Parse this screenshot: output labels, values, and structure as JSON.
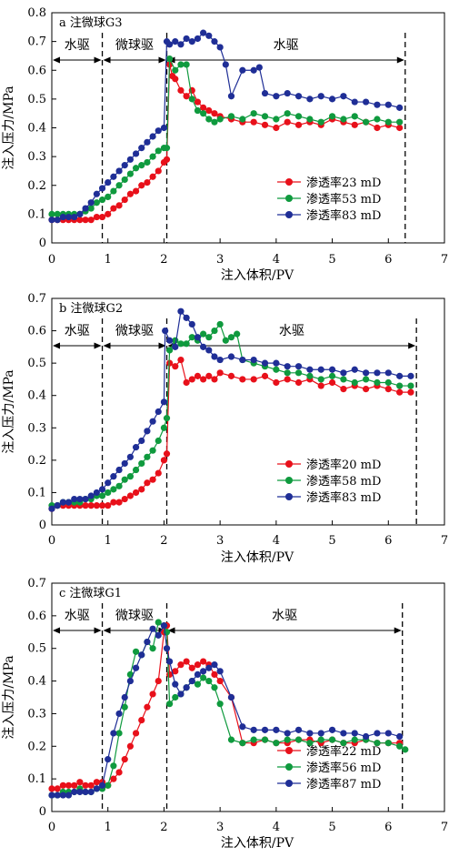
{
  "colors": {
    "red": "#e8101a",
    "green": "#0f9a3e",
    "blue": "#1f2e96"
  },
  "chart_data": [
    {
      "type": "line",
      "title": "a 注微球G3",
      "xlabel": "注入体积/PV",
      "ylabel": "注入压力/MPa",
      "xlim": [
        0,
        7
      ],
      "ylim": [
        0,
        0.8
      ],
      "xticks": [
        "0",
        "1",
        "2",
        "3",
        "4",
        "5",
        "6",
        "7"
      ],
      "yticks": [
        "0",
        "0.1",
        "0.2",
        "0.3",
        "0.4",
        "0.5",
        "0.6",
        "0.7",
        "0.8"
      ],
      "legend_position": "lower-right",
      "stage_lines": [
        0.9,
        2.05,
        6.3
      ],
      "stages": [
        {
          "label": "水驱",
          "from": 0,
          "to": 0.9
        },
        {
          "label": "微球驱",
          "from": 0.9,
          "to": 2.05
        },
        {
          "label": "水驱",
          "from": 2.05,
          "to": 6.3
        }
      ],
      "series": [
        {
          "name": "渗透率23 mD",
          "color": "red",
          "x": [
            0,
            0.1,
            0.2,
            0.3,
            0.4,
            0.5,
            0.6,
            0.7,
            0.8,
            0.9,
            1.0,
            1.1,
            1.2,
            1.3,
            1.4,
            1.5,
            1.6,
            1.7,
            1.8,
            1.9,
            2.0,
            2.05,
            2.1,
            2.15,
            2.2,
            2.3,
            2.4,
            2.5,
            2.6,
            2.7,
            2.8,
            2.9,
            3.0,
            3.2,
            3.4,
            3.6,
            3.8,
            4.0,
            4.2,
            4.4,
            4.6,
            4.8,
            5.0,
            5.2,
            5.4,
            5.6,
            5.8,
            6.0,
            6.2
          ],
          "y": [
            0.08,
            0.08,
            0.08,
            0.08,
            0.08,
            0.08,
            0.08,
            0.08,
            0.09,
            0.09,
            0.1,
            0.12,
            0.13,
            0.15,
            0.17,
            0.18,
            0.2,
            0.21,
            0.23,
            0.25,
            0.28,
            0.29,
            0.62,
            0.58,
            0.57,
            0.53,
            0.51,
            0.53,
            0.49,
            0.47,
            0.46,
            0.45,
            0.44,
            0.43,
            0.42,
            0.42,
            0.41,
            0.4,
            0.42,
            0.41,
            0.42,
            0.41,
            0.43,
            0.42,
            0.41,
            0.42,
            0.4,
            0.41,
            0.4
          ]
        },
        {
          "name": "渗透率53 mD",
          "color": "green",
          "x": [
            0,
            0.1,
            0.2,
            0.3,
            0.4,
            0.5,
            0.6,
            0.7,
            0.8,
            0.9,
            1.0,
            1.1,
            1.2,
            1.3,
            1.4,
            1.5,
            1.6,
            1.7,
            1.8,
            1.9,
            2.0,
            2.05,
            2.1,
            2.2,
            2.3,
            2.4,
            2.5,
            2.6,
            2.7,
            2.8,
            2.9,
            3.0,
            3.2,
            3.4,
            3.6,
            3.8,
            4.0,
            4.2,
            4.4,
            4.6,
            4.8,
            5.0,
            5.2,
            5.4,
            5.6,
            5.8,
            6.0,
            6.2
          ],
          "y": [
            0.1,
            0.1,
            0.1,
            0.1,
            0.1,
            0.1,
            0.11,
            0.12,
            0.14,
            0.15,
            0.16,
            0.18,
            0.2,
            0.22,
            0.24,
            0.26,
            0.27,
            0.28,
            0.3,
            0.32,
            0.33,
            0.33,
            0.64,
            0.6,
            0.62,
            0.62,
            0.5,
            0.46,
            0.45,
            0.43,
            0.42,
            0.43,
            0.44,
            0.43,
            0.45,
            0.44,
            0.43,
            0.45,
            0.44,
            0.43,
            0.42,
            0.44,
            0.43,
            0.44,
            0.42,
            0.43,
            0.42,
            0.42
          ]
        },
        {
          "name": "渗透率83 mD",
          "color": "blue",
          "x": [
            0,
            0.1,
            0.2,
            0.3,
            0.4,
            0.5,
            0.6,
            0.7,
            0.8,
            0.9,
            1.0,
            1.1,
            1.2,
            1.3,
            1.4,
            1.5,
            1.6,
            1.7,
            1.8,
            1.9,
            2.0,
            2.05,
            2.1,
            2.2,
            2.3,
            2.4,
            2.5,
            2.6,
            2.7,
            2.8,
            2.9,
            3.0,
            3.1,
            3.2,
            3.4,
            3.6,
            3.7,
            3.8,
            4.0,
            4.2,
            4.4,
            4.6,
            4.8,
            5.0,
            5.2,
            5.4,
            5.6,
            5.8,
            6.0,
            6.2
          ],
          "y": [
            0.08,
            0.08,
            0.09,
            0.09,
            0.09,
            0.1,
            0.12,
            0.14,
            0.17,
            0.19,
            0.21,
            0.23,
            0.25,
            0.27,
            0.29,
            0.31,
            0.33,
            0.35,
            0.37,
            0.39,
            0.4,
            0.7,
            0.69,
            0.7,
            0.69,
            0.71,
            0.7,
            0.71,
            0.73,
            0.72,
            0.7,
            0.68,
            0.62,
            0.51,
            0.6,
            0.6,
            0.61,
            0.52,
            0.51,
            0.52,
            0.51,
            0.5,
            0.51,
            0.5,
            0.51,
            0.49,
            0.49,
            0.48,
            0.48,
            0.47
          ]
        }
      ]
    },
    {
      "type": "line",
      "title": "b 注微球G2",
      "xlabel": "注入体积/PV",
      "ylabel": "注入压力/MPa",
      "xlim": [
        0,
        7
      ],
      "ylim": [
        0,
        0.7
      ],
      "xticks": [
        "0",
        "1",
        "2",
        "3",
        "4",
        "5",
        "6",
        "7"
      ],
      "yticks": [
        "0",
        "0.1",
        "0.2",
        "0.3",
        "0.4",
        "0.5",
        "0.6",
        "0.7"
      ],
      "legend_position": "lower-right",
      "stage_lines": [
        0.9,
        2.05,
        6.5
      ],
      "stages": [
        {
          "label": "水驱",
          "from": 0,
          "to": 0.9
        },
        {
          "label": "微球驱",
          "from": 0.9,
          "to": 2.05
        },
        {
          "label": "水驱",
          "from": 2.05,
          "to": 6.5
        }
      ],
      "series": [
        {
          "name": "渗透率20 mD",
          "color": "red",
          "x": [
            0,
            0.1,
            0.2,
            0.3,
            0.4,
            0.5,
            0.6,
            0.7,
            0.8,
            0.9,
            1.0,
            1.1,
            1.2,
            1.3,
            1.4,
            1.5,
            1.6,
            1.7,
            1.8,
            1.9,
            2.0,
            2.05,
            2.1,
            2.2,
            2.3,
            2.4,
            2.5,
            2.6,
            2.7,
            2.8,
            2.9,
            3.0,
            3.2,
            3.4,
            3.6,
            3.8,
            4.0,
            4.2,
            4.4,
            4.6,
            4.8,
            5.0,
            5.2,
            5.4,
            5.6,
            5.8,
            6.0,
            6.2,
            6.4
          ],
          "y": [
            0.05,
            0.06,
            0.06,
            0.06,
            0.06,
            0.06,
            0.06,
            0.06,
            0.06,
            0.06,
            0.06,
            0.07,
            0.07,
            0.08,
            0.09,
            0.1,
            0.11,
            0.13,
            0.14,
            0.16,
            0.2,
            0.22,
            0.5,
            0.49,
            0.51,
            0.44,
            0.45,
            0.46,
            0.45,
            0.46,
            0.45,
            0.47,
            0.46,
            0.45,
            0.45,
            0.46,
            0.44,
            0.45,
            0.44,
            0.45,
            0.43,
            0.44,
            0.42,
            0.43,
            0.42,
            0.43,
            0.42,
            0.41,
            0.41
          ]
        },
        {
          "name": "渗透率58 mD",
          "color": "green",
          "x": [
            0,
            0.1,
            0.2,
            0.3,
            0.4,
            0.5,
            0.6,
            0.7,
            0.8,
            0.9,
            1.0,
            1.1,
            1.2,
            1.3,
            1.4,
            1.5,
            1.6,
            1.7,
            1.8,
            1.9,
            2.0,
            2.05,
            2.1,
            2.2,
            2.3,
            2.4,
            2.5,
            2.6,
            2.7,
            2.8,
            2.9,
            3.0,
            3.1,
            3.2,
            3.3,
            3.4,
            3.6,
            3.8,
            4.0,
            4.2,
            4.4,
            4.6,
            4.8,
            5.0,
            5.2,
            5.4,
            5.6,
            5.8,
            6.0,
            6.2,
            6.4
          ],
          "y": [
            0.06,
            0.06,
            0.07,
            0.07,
            0.07,
            0.07,
            0.08,
            0.08,
            0.09,
            0.09,
            0.1,
            0.11,
            0.12,
            0.14,
            0.15,
            0.17,
            0.19,
            0.21,
            0.23,
            0.26,
            0.3,
            0.33,
            0.54,
            0.57,
            0.56,
            0.56,
            0.58,
            0.57,
            0.59,
            0.58,
            0.6,
            0.62,
            0.57,
            0.58,
            0.59,
            0.51,
            0.5,
            0.49,
            0.48,
            0.47,
            0.47,
            0.46,
            0.45,
            0.46,
            0.45,
            0.44,
            0.45,
            0.44,
            0.44,
            0.43,
            0.43
          ]
        },
        {
          "name": "渗透率83 mD",
          "color": "blue",
          "x": [
            0,
            0.1,
            0.2,
            0.3,
            0.4,
            0.5,
            0.6,
            0.7,
            0.8,
            0.9,
            1.0,
            1.1,
            1.2,
            1.3,
            1.4,
            1.5,
            1.6,
            1.7,
            1.8,
            1.9,
            2.0,
            2.02,
            2.1,
            2.2,
            2.3,
            2.4,
            2.5,
            2.6,
            2.7,
            2.8,
            2.9,
            3.0,
            3.2,
            3.4,
            3.6,
            3.8,
            4.0,
            4.2,
            4.4,
            4.6,
            4.8,
            5.0,
            5.2,
            5.4,
            5.6,
            5.8,
            6.0,
            6.2,
            6.4
          ],
          "y": [
            0.05,
            0.06,
            0.07,
            0.07,
            0.08,
            0.08,
            0.08,
            0.09,
            0.1,
            0.11,
            0.13,
            0.15,
            0.17,
            0.19,
            0.21,
            0.24,
            0.26,
            0.29,
            0.32,
            0.35,
            0.38,
            0.6,
            0.57,
            0.55,
            0.66,
            0.64,
            0.62,
            0.58,
            0.55,
            0.54,
            0.52,
            0.51,
            0.52,
            0.51,
            0.51,
            0.5,
            0.5,
            0.49,
            0.49,
            0.48,
            0.48,
            0.48,
            0.47,
            0.48,
            0.47,
            0.47,
            0.47,
            0.46,
            0.46
          ]
        }
      ]
    },
    {
      "type": "line",
      "title": "c 注微球G1",
      "xlabel": "注入体积/PV",
      "ylabel": "注入压力/MPa",
      "xlim": [
        0,
        7
      ],
      "ylim": [
        0,
        0.7
      ],
      "xticks": [
        "0",
        "1",
        "2",
        "3",
        "4",
        "5",
        "6",
        "7"
      ],
      "yticks": [
        "0",
        "0.1",
        "0.2",
        "0.3",
        "0.4",
        "0.5",
        "0.6",
        "0.7"
      ],
      "legend_position": "lower-right",
      "stage_lines": [
        0.9,
        2.05,
        6.25
      ],
      "stages": [
        {
          "label": "水驱",
          "from": 0,
          "to": 0.9
        },
        {
          "label": "微球驱",
          "from": 0.9,
          "to": 2.05
        },
        {
          "label": "水驱",
          "from": 2.05,
          "to": 6.25
        }
      ],
      "series": [
        {
          "name": "渗透率22 mD",
          "color": "red",
          "x": [
            0,
            0.1,
            0.2,
            0.3,
            0.4,
            0.5,
            0.6,
            0.7,
            0.8,
            0.9,
            1.0,
            1.1,
            1.2,
            1.3,
            1.4,
            1.5,
            1.6,
            1.7,
            1.8,
            1.9,
            2.0,
            2.05,
            2.1,
            2.2,
            2.3,
            2.4,
            2.5,
            2.6,
            2.7,
            2.8,
            2.9,
            3.0,
            3.2,
            3.4,
            3.6,
            3.8,
            4.0,
            4.2,
            4.4,
            4.6,
            4.8,
            5.0,
            5.2,
            5.4,
            5.6,
            5.8,
            6.0,
            6.2
          ],
          "y": [
            0.07,
            0.07,
            0.08,
            0.08,
            0.08,
            0.09,
            0.08,
            0.08,
            0.09,
            0.09,
            0.08,
            0.1,
            0.12,
            0.16,
            0.2,
            0.24,
            0.28,
            0.32,
            0.36,
            0.4,
            0.55,
            0.57,
            0.42,
            0.43,
            0.45,
            0.46,
            0.44,
            0.45,
            0.46,
            0.45,
            0.42,
            0.4,
            0.35,
            0.21,
            0.21,
            0.22,
            0.21,
            0.21,
            0.22,
            0.22,
            0.21,
            0.22,
            0.21,
            0.21,
            0.22,
            0.21,
            0.21,
            0.21
          ]
        },
        {
          "name": "渗透率56 mD",
          "color": "green",
          "x": [
            0,
            0.1,
            0.2,
            0.3,
            0.4,
            0.5,
            0.6,
            0.7,
            0.8,
            0.9,
            1.0,
            1.1,
            1.2,
            1.3,
            1.4,
            1.5,
            1.6,
            1.7,
            1.8,
            1.9,
            2.0,
            2.05,
            2.1,
            2.2,
            2.3,
            2.4,
            2.5,
            2.6,
            2.7,
            2.8,
            2.9,
            3.0,
            3.2,
            3.4,
            3.6,
            3.8,
            4.0,
            4.2,
            4.4,
            4.6,
            4.8,
            5.0,
            5.2,
            5.4,
            5.6,
            5.8,
            6.0,
            6.2,
            6.3
          ],
          "y": [
            0.05,
            0.05,
            0.06,
            0.06,
            0.06,
            0.07,
            0.06,
            0.06,
            0.07,
            0.07,
            0.08,
            0.14,
            0.24,
            0.32,
            0.42,
            0.49,
            0.48,
            0.52,
            0.5,
            0.58,
            0.57,
            0.55,
            0.33,
            0.35,
            0.36,
            0.38,
            0.4,
            0.39,
            0.41,
            0.4,
            0.38,
            0.33,
            0.22,
            0.21,
            0.22,
            0.22,
            0.21,
            0.22,
            0.22,
            0.21,
            0.22,
            0.22,
            0.21,
            0.22,
            0.22,
            0.21,
            0.21,
            0.2,
            0.19
          ]
        },
        {
          "name": "渗透率87 mD",
          "color": "blue",
          "x": [
            0,
            0.1,
            0.2,
            0.3,
            0.4,
            0.5,
            0.6,
            0.7,
            0.8,
            0.9,
            1.0,
            1.1,
            1.2,
            1.3,
            1.4,
            1.5,
            1.6,
            1.7,
            1.8,
            1.9,
            2.0,
            2.05,
            2.1,
            2.2,
            2.3,
            2.4,
            2.5,
            2.6,
            2.7,
            2.8,
            2.9,
            3.0,
            3.2,
            3.4,
            3.6,
            3.8,
            4.0,
            4.2,
            4.4,
            4.6,
            4.8,
            5.0,
            5.2,
            5.4,
            5.6,
            5.8,
            6.0,
            6.2
          ],
          "y": [
            0.05,
            0.05,
            0.05,
            0.05,
            0.06,
            0.06,
            0.06,
            0.06,
            0.07,
            0.08,
            0.16,
            0.24,
            0.3,
            0.35,
            0.4,
            0.44,
            0.48,
            0.52,
            0.56,
            0.54,
            0.57,
            0.5,
            0.46,
            0.39,
            0.36,
            0.38,
            0.4,
            0.42,
            0.43,
            0.44,
            0.45,
            0.43,
            0.35,
            0.26,
            0.25,
            0.25,
            0.25,
            0.24,
            0.25,
            0.24,
            0.24,
            0.25,
            0.24,
            0.24,
            0.23,
            0.24,
            0.24,
            0.23
          ]
        }
      ]
    }
  ]
}
